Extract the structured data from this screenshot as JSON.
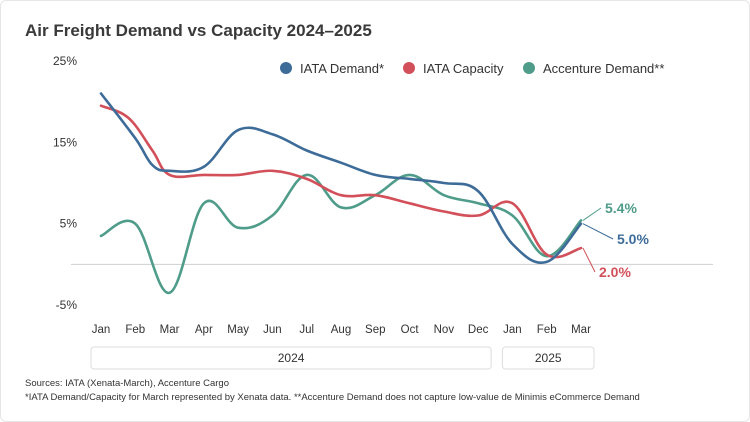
{
  "title": "Air Freight Demand vs Capacity 2024–2025",
  "chart_data": {
    "type": "line",
    "title": "Air Freight Demand vs Capacity 2024–2025",
    "categories": [
      "Jan",
      "Feb",
      "Mar",
      "Apr",
      "May",
      "Jun",
      "Jul",
      "Aug",
      "Sep",
      "Oct",
      "Nov",
      "Dec",
      "Jan",
      "Feb",
      "Mar"
    ],
    "year_groups": [
      {
        "label": "2024",
        "from": 0,
        "to": 11
      },
      {
        "label": "2025",
        "from": 12,
        "to": 14
      }
    ],
    "y_ticks": [
      {
        "value": 25,
        "label": "25%"
      },
      {
        "value": 15,
        "label": "15%"
      },
      {
        "value": 5,
        "label": "5%"
      },
      {
        "value": -5,
        "label": "-5%"
      }
    ],
    "ylim": [
      -5,
      25
    ],
    "zero_line": 0,
    "series": [
      {
        "name": "IATA Demand*",
        "color": "#3E6C99",
        "values": [
          [
            0,
            21
          ],
          [
            1,
            15.5
          ],
          [
            1.5,
            12.2
          ],
          [
            2,
            11.5
          ],
          [
            3,
            12
          ],
          [
            4,
            16.5
          ],
          [
            5,
            16
          ],
          [
            6,
            14
          ],
          [
            7,
            12.5
          ],
          [
            8,
            11
          ],
          [
            9,
            10.5
          ],
          [
            10,
            10
          ],
          [
            11,
            9
          ],
          [
            12,
            2.5
          ],
          [
            13,
            0.3
          ],
          [
            14,
            5
          ]
        ],
        "end_label": "5.0%"
      },
      {
        "name": "IATA Capacity",
        "color": "#D2505A",
        "values": [
          [
            0,
            19.5
          ],
          [
            0.8,
            18
          ],
          [
            1.5,
            14
          ],
          [
            2,
            11
          ],
          [
            3,
            11
          ],
          [
            4,
            11
          ],
          [
            5,
            11.5
          ],
          [
            6,
            10.5
          ],
          [
            7,
            8.5
          ],
          [
            8,
            8.5
          ],
          [
            9,
            7.5
          ],
          [
            10,
            6.5
          ],
          [
            11,
            6
          ],
          [
            12,
            7.5
          ],
          [
            13,
            1.2
          ],
          [
            14,
            2
          ]
        ],
        "end_label": "2.0%"
      },
      {
        "name": "Accenture Demand**",
        "color": "#4E9C89",
        "values": [
          [
            0,
            3.5
          ],
          [
            1,
            5
          ],
          [
            2,
            -3.5
          ],
          [
            3,
            7.5
          ],
          [
            4,
            4.5
          ],
          [
            5,
            6
          ],
          [
            6,
            11
          ],
          [
            7,
            7
          ],
          [
            8,
            8.5
          ],
          [
            9,
            11
          ],
          [
            10,
            8.5
          ],
          [
            11,
            7.5
          ],
          [
            12,
            6
          ],
          [
            13,
            1
          ],
          [
            14,
            5.4
          ]
        ],
        "end_label": "5.4%"
      }
    ],
    "legend_position": "top-center",
    "grid": false
  },
  "footnotes": {
    "sources": "Sources: IATA (Xenata-March), Accenture Cargo",
    "note": "*IATA Demand/Capacity for March represented by Xenata data. **Accenture Demand does not capture low-value de Minimis eCommerce Demand"
  }
}
